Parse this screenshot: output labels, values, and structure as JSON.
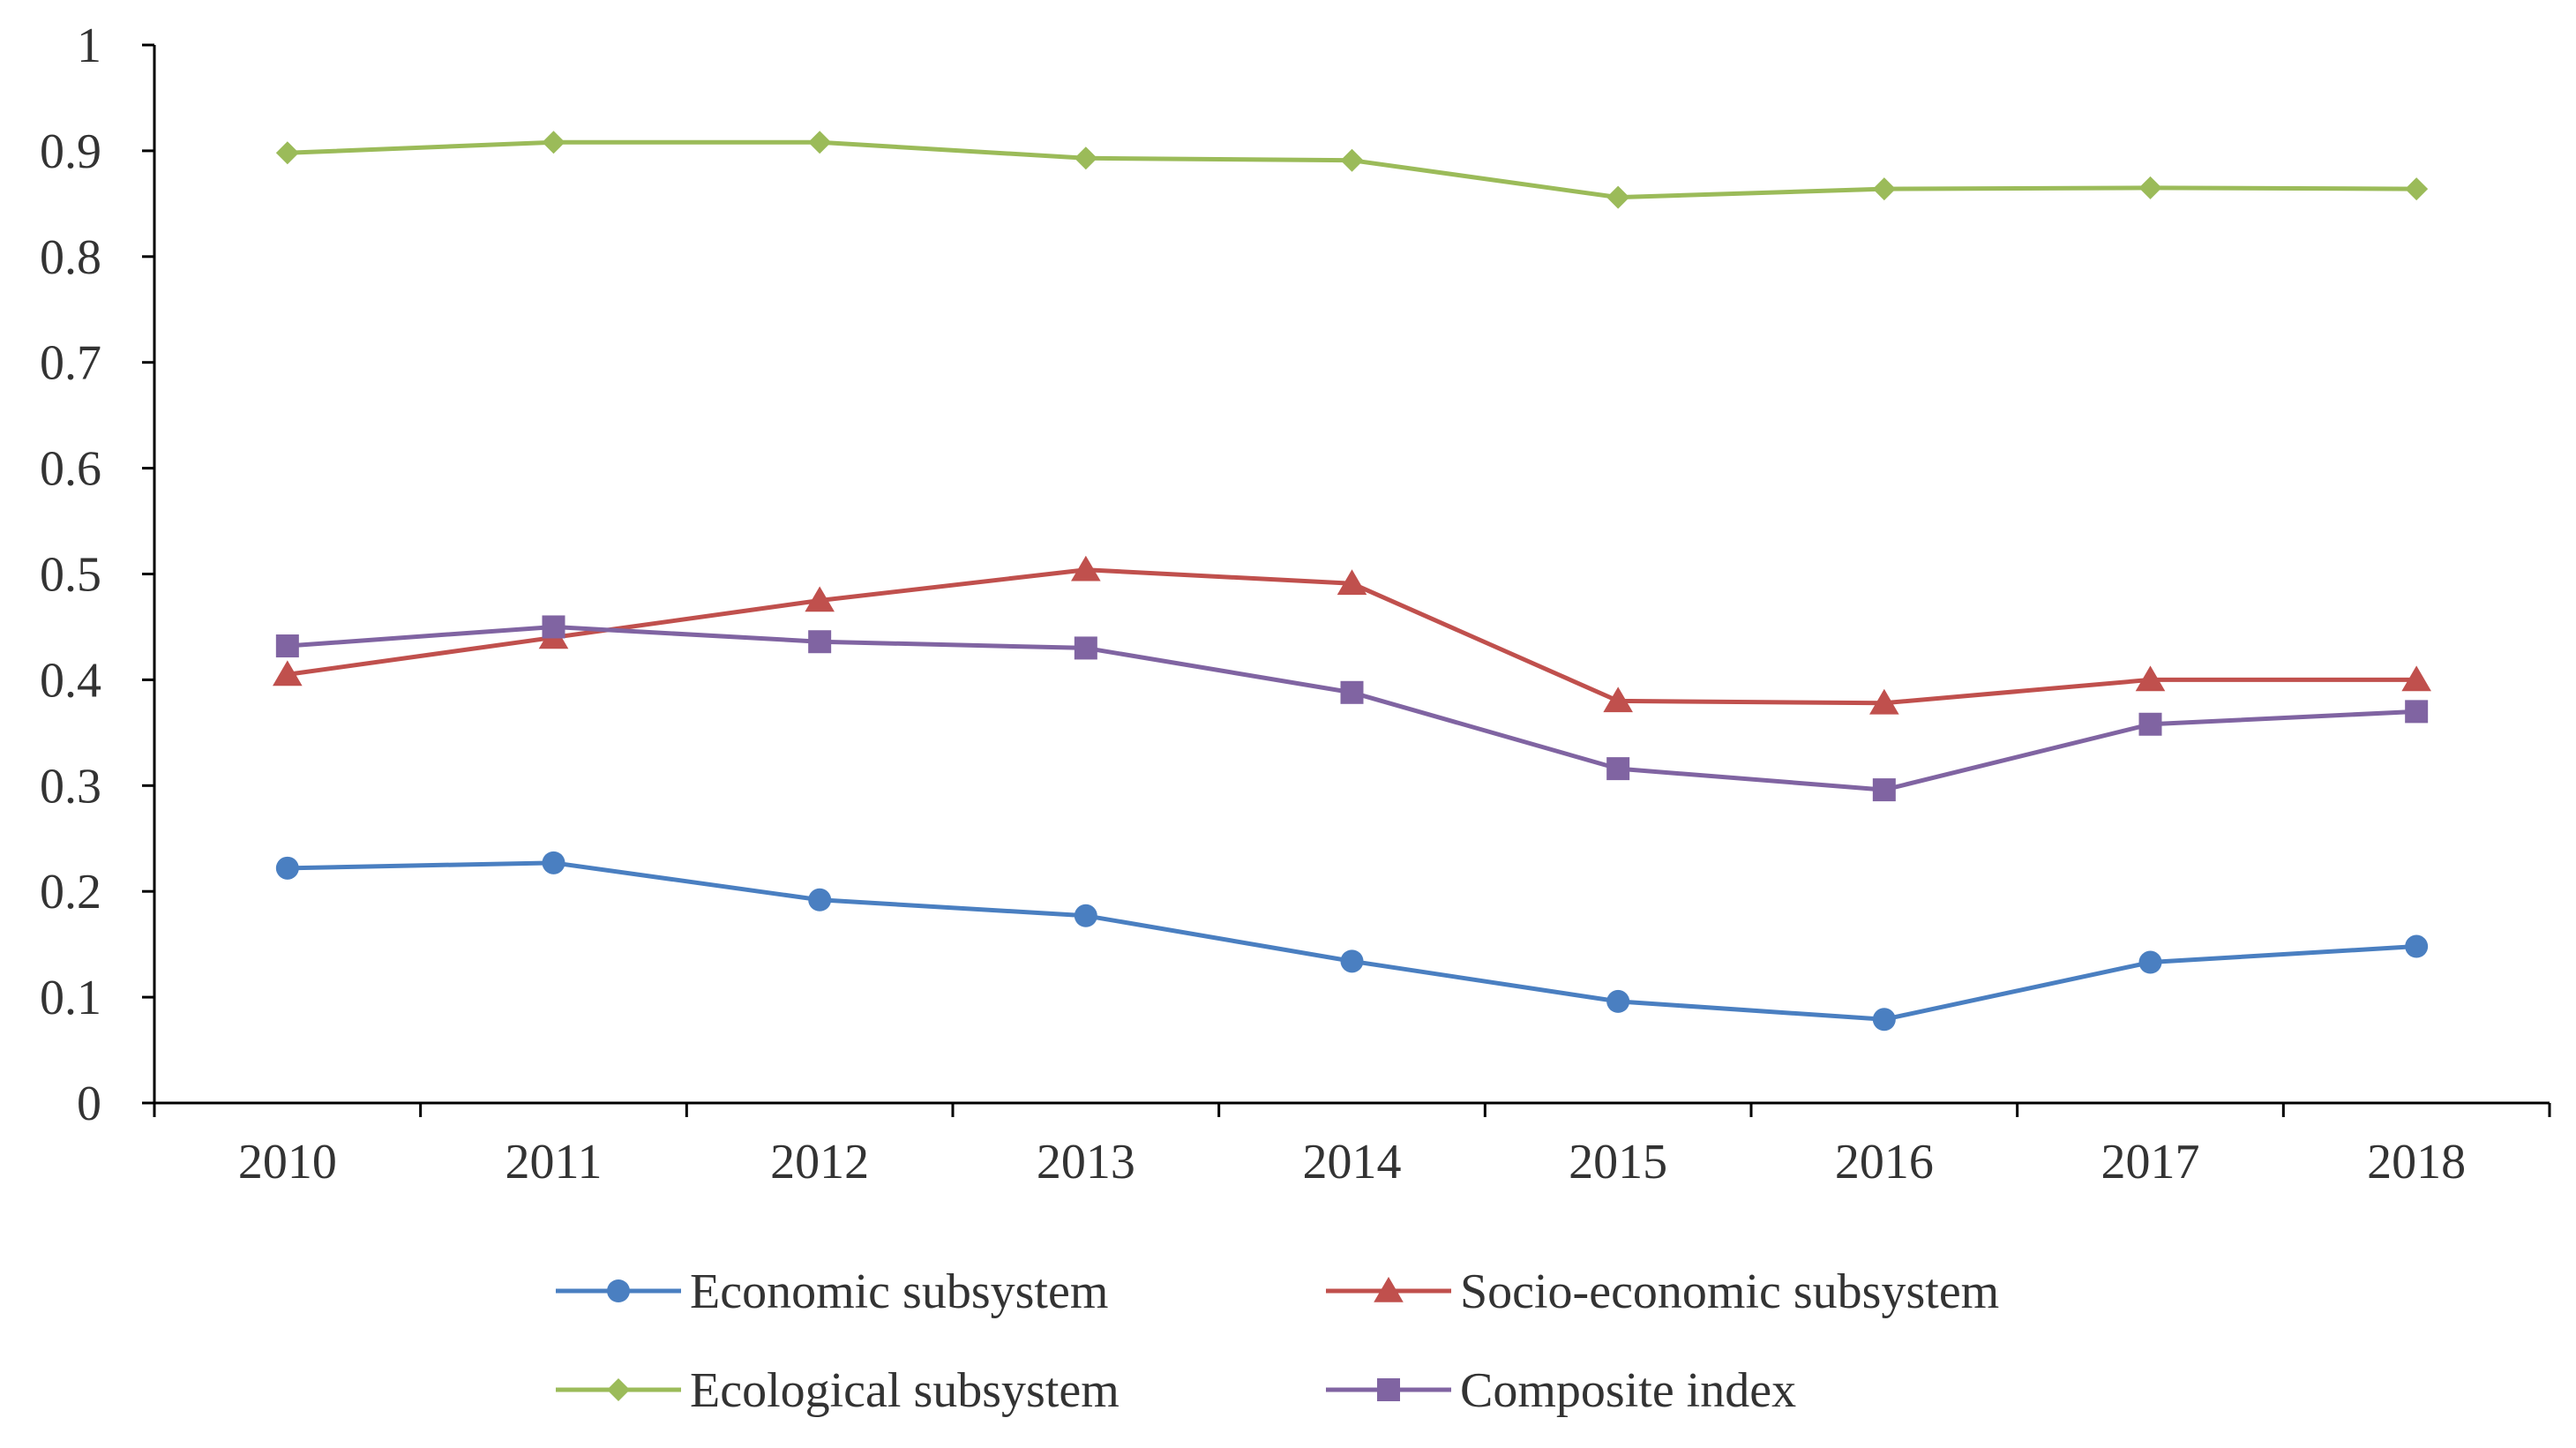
{
  "chart_data": {
    "type": "line",
    "title": "",
    "xlabel": "",
    "ylabel": "",
    "categories": [
      "2010",
      "2011",
      "2012",
      "2013",
      "2014",
      "2015",
      "2016",
      "2017",
      "2018"
    ],
    "ylim": [
      0,
      1
    ],
    "yticks": [
      "0",
      "0.1",
      "0.2",
      "0.3",
      "0.4",
      "0.5",
      "0.6",
      "0.7",
      "0.8",
      "0.9",
      "1"
    ],
    "grid": false,
    "legend_position": "bottom",
    "series": [
      {
        "name": "Economic subsystem",
        "color": "#4a7fc1",
        "marker": "circle",
        "values": [
          0.222,
          0.227,
          0.192,
          0.177,
          0.134,
          0.096,
          0.079,
          0.133,
          0.148
        ]
      },
      {
        "name": "Socio-economic subsystem",
        "color": "#c0504d",
        "marker": "triangle",
        "values": [
          0.405,
          0.44,
          0.475,
          0.504,
          0.491,
          0.38,
          0.378,
          0.4,
          0.4
        ]
      },
      {
        "name": "Ecological subsystem",
        "color": "#9bbb59",
        "marker": "diamond",
        "values": [
          0.898,
          0.908,
          0.908,
          0.893,
          0.891,
          0.856,
          0.864,
          0.865,
          0.864
        ]
      },
      {
        "name": "Composite index",
        "color": "#8064a2",
        "marker": "square",
        "values": [
          0.432,
          0.45,
          0.436,
          0.43,
          0.388,
          0.316,
          0.296,
          0.358,
          0.37
        ]
      }
    ]
  }
}
